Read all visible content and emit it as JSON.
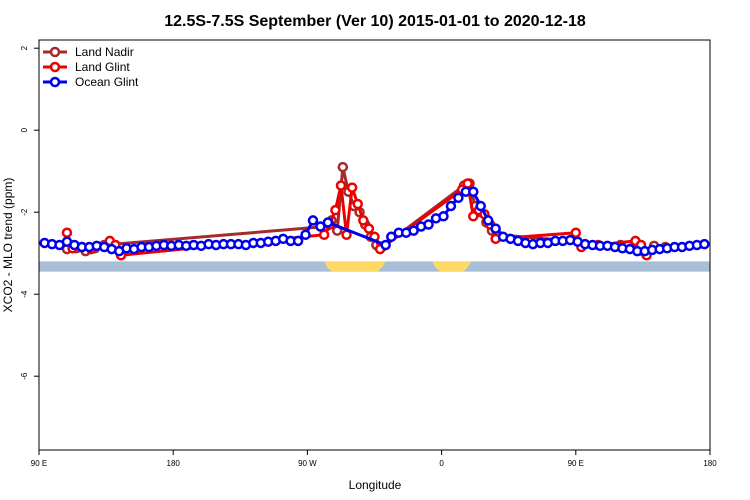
{
  "chart_data": {
    "type": "line",
    "title": "12.5S-7.5S September (Ver 10)   2015-01-01 to 2020-12-18",
    "xlabel": "Longitude",
    "ylabel": "XCO2 - MLO trend (ppm)",
    "xlim": [
      90,
      450
    ],
    "ylim": [
      -7.8,
      2.2
    ],
    "x_ticks": [
      {
        "value": 90,
        "label": "90 E"
      },
      {
        "value": 162,
        "label": "180"
      },
      {
        "value": 234,
        "label": "90 W"
      },
      {
        "value": 306,
        "label": "0"
      },
      {
        "value": 378,
        "label": "90 E"
      },
      {
        "value": 450,
        "label": "180"
      }
    ],
    "y_ticks": [
      {
        "value": 2,
        "label": "2"
      },
      {
        "value": 0,
        "label": "0"
      },
      {
        "value": -2,
        "label": "-2"
      },
      {
        "value": -4,
        "label": "-4"
      },
      {
        "value": -6,
        "label": "-6"
      }
    ],
    "legend": {
      "position": "top-left"
    },
    "series": [
      {
        "name": "Land Nadir",
        "color": "#a52a2a",
        "points": [
          [
            105,
            -2.9
          ],
          [
            110,
            -2.88
          ],
          [
            115,
            -2.95
          ],
          [
            120,
            -2.88
          ],
          [
            125,
            -2.8
          ],
          [
            244,
            -2.35
          ],
          [
            247,
            -2.2
          ],
          [
            250,
            -2.45
          ],
          [
            253,
            -0.9
          ],
          [
            256,
            -1.5
          ],
          [
            259,
            -1.85
          ],
          [
            262,
            -2.0
          ],
          [
            265,
            -2.3
          ],
          [
            268,
            -2.6
          ],
          [
            271,
            -2.8
          ],
          [
            274,
            -2.85
          ],
          [
            318,
            -1.35
          ],
          [
            321,
            -1.3
          ],
          [
            324,
            -1.85
          ],
          [
            327,
            -2.0
          ],
          [
            330,
            -2.25
          ],
          [
            333,
            -2.45
          ],
          [
            336,
            -2.55
          ],
          [
            402,
            -2.8
          ],
          [
            408,
            -2.88
          ],
          [
            414,
            -2.95
          ],
          [
            420,
            -2.82
          ],
          [
            426,
            -2.85
          ]
        ]
      },
      {
        "name": "Land Glint",
        "color": "#ee0000",
        "points": [
          [
            105,
            -2.5
          ],
          [
            108,
            -2.88
          ],
          [
            113,
            -2.85
          ],
          [
            118,
            -2.9
          ],
          [
            128,
            -2.7
          ],
          [
            131,
            -2.8
          ],
          [
            134,
            -3.05
          ],
          [
            243,
            -2.55
          ],
          [
            246,
            -2.3
          ],
          [
            249,
            -1.95
          ],
          [
            252,
            -1.35
          ],
          [
            255,
            -2.55
          ],
          [
            258,
            -1.4
          ],
          [
            261,
            -1.8
          ],
          [
            264,
            -2.2
          ],
          [
            267,
            -2.4
          ],
          [
            270,
            -2.6
          ],
          [
            273,
            -2.9
          ],
          [
            317,
            -1.45
          ],
          [
            320,
            -1.3
          ],
          [
            323,
            -2.1
          ],
          [
            326,
            -1.95
          ],
          [
            329,
            -2.05
          ],
          [
            332,
            -2.3
          ],
          [
            335,
            -2.65
          ],
          [
            378,
            -2.5
          ],
          [
            381,
            -2.85
          ],
          [
            390,
            -2.8
          ],
          [
            410,
            -2.7
          ],
          [
            413,
            -2.8
          ],
          [
            416,
            -3.05
          ]
        ]
      },
      {
        "name": "Ocean Glint",
        "color": "#0000ee",
        "points": [
          [
            93,
            -2.75
          ],
          [
            97,
            -2.78
          ],
          [
            101,
            -2.8
          ],
          [
            105,
            -2.72
          ],
          [
            109,
            -2.8
          ],
          [
            113,
            -2.85
          ],
          [
            117,
            -2.85
          ],
          [
            121,
            -2.82
          ],
          [
            125,
            -2.85
          ],
          [
            129,
            -2.9
          ],
          [
            133,
            -2.95
          ],
          [
            137,
            -2.88
          ],
          [
            141,
            -2.9
          ],
          [
            145,
            -2.85
          ],
          [
            149,
            -2.85
          ],
          [
            153,
            -2.82
          ],
          [
            157,
            -2.8
          ],
          [
            161,
            -2.82
          ],
          [
            165,
            -2.8
          ],
          [
            169,
            -2.82
          ],
          [
            173,
            -2.8
          ],
          [
            177,
            -2.82
          ],
          [
            181,
            -2.78
          ],
          [
            185,
            -2.8
          ],
          [
            189,
            -2.78
          ],
          [
            193,
            -2.78
          ],
          [
            197,
            -2.78
          ],
          [
            201,
            -2.8
          ],
          [
            205,
            -2.75
          ],
          [
            209,
            -2.75
          ],
          [
            213,
            -2.72
          ],
          [
            217,
            -2.7
          ],
          [
            221,
            -2.65
          ],
          [
            225,
            -2.7
          ],
          [
            229,
            -2.7
          ],
          [
            233,
            -2.55
          ],
          [
            237,
            -2.2
          ],
          [
            241,
            -2.35
          ],
          [
            245,
            -2.25
          ],
          [
            276,
            -2.8
          ],
          [
            279,
            -2.6
          ],
          [
            283,
            -2.5
          ],
          [
            287,
            -2.5
          ],
          [
            291,
            -2.45
          ],
          [
            295,
            -2.35
          ],
          [
            299,
            -2.3
          ],
          [
            303,
            -2.15
          ],
          [
            307,
            -2.1
          ],
          [
            311,
            -1.85
          ],
          [
            315,
            -1.65
          ],
          [
            319,
            -1.5
          ],
          [
            323,
            -1.5
          ],
          [
            327,
            -1.85
          ],
          [
            331,
            -2.2
          ],
          [
            335,
            -2.4
          ],
          [
            339,
            -2.6
          ],
          [
            343,
            -2.65
          ],
          [
            347,
            -2.7
          ],
          [
            351,
            -2.75
          ],
          [
            355,
            -2.78
          ],
          [
            359,
            -2.75
          ],
          [
            363,
            -2.75
          ],
          [
            367,
            -2.7
          ],
          [
            371,
            -2.7
          ],
          [
            375,
            -2.68
          ],
          [
            379,
            -2.72
          ],
          [
            383,
            -2.78
          ],
          [
            387,
            -2.8
          ],
          [
            391,
            -2.82
          ],
          [
            395,
            -2.82
          ],
          [
            399,
            -2.85
          ],
          [
            403,
            -2.88
          ],
          [
            407,
            -2.9
          ],
          [
            411,
            -2.95
          ],
          [
            415,
            -2.95
          ],
          [
            419,
            -2.92
          ],
          [
            423,
            -2.9
          ],
          [
            427,
            -2.88
          ],
          [
            431,
            -2.85
          ],
          [
            435,
            -2.85
          ],
          [
            439,
            -2.82
          ],
          [
            443,
            -2.8
          ],
          [
            447,
            -2.78
          ]
        ]
      }
    ]
  },
  "colors": {
    "land_band": "#ffd966",
    "ocean_band": "#a7bed6"
  },
  "band": {
    "y_top": -3.2,
    "y_bottom": -3.45,
    "land_segments": [
      [
        243,
        276
      ],
      [
        301,
        322
      ]
    ]
  }
}
